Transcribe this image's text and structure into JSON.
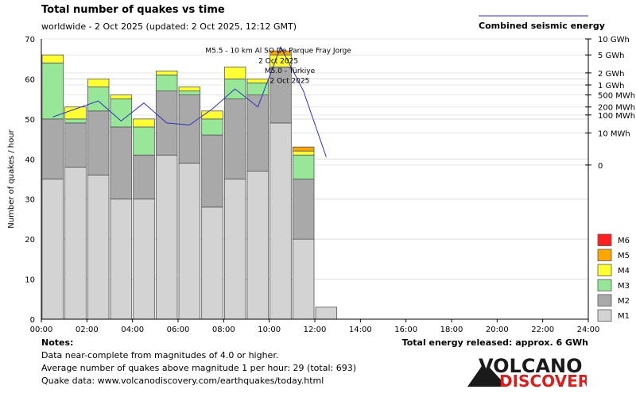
{
  "header": {
    "title": "Total number of quakes vs time",
    "subtitle": "worldwide -  2 Oct 2025 (updated: 2 Oct 2025, 12:12 GMT)",
    "energy_legend_label": "Combined seismic energy"
  },
  "notes": {
    "title": "Notes:",
    "lines": [
      "Data near-complete from magnitudes of 4.0 or higher.",
      "Average number of quakes above magnitude 1 per hour: 29 (total: 693)",
      "Quake data: www.volcanodiscovery.com/earthquakes/today.html"
    ],
    "total_energy": "Total energy released: approx. 6 GWh"
  },
  "logo": {
    "line1": "VOLCANO",
    "line2": "DISCOVERY"
  },
  "colors": {
    "M1": "#d3d3d3",
    "M2": "#a9a9a9",
    "M3": "#98e698",
    "M4": "#ffff33",
    "M5": "#ffa500",
    "M6": "#ff2020",
    "energy_line": "#3030c0",
    "grid": "#dddddd"
  },
  "chart_data": {
    "type": "bar",
    "stacked": true,
    "ylabel": "Number of quakes / hour",
    "ylim": [
      0,
      70
    ],
    "y_ticks": [
      0,
      10,
      20,
      30,
      40,
      50,
      60,
      70
    ],
    "x_ticks": [
      "00:00",
      "02:00",
      "04:00",
      "06:00",
      "08:00",
      "10:00",
      "12:00",
      "14:00",
      "16:00",
      "18:00",
      "20:00",
      "22:00",
      "24:00"
    ],
    "hours": [
      0,
      1,
      2,
      3,
      4,
      5,
      6,
      7,
      8,
      9,
      10,
      11,
      12
    ],
    "series": [
      {
        "name": "M1",
        "values": [
          35,
          38,
          36,
          30,
          30,
          41,
          39,
          28,
          35,
          37,
          49,
          20,
          3
        ]
      },
      {
        "name": "M2",
        "values": [
          15,
          11,
          16,
          18,
          11,
          16,
          17,
          18,
          20,
          19,
          14,
          15,
          0
        ]
      },
      {
        "name": "M3",
        "values": [
          14,
          1,
          6,
          7,
          7,
          4,
          1,
          4,
          5,
          3,
          0,
          6,
          0
        ]
      },
      {
        "name": "M4",
        "values": [
          2,
          3,
          2,
          1,
          2,
          1,
          1,
          2,
          3,
          1,
          3,
          1,
          0
        ]
      },
      {
        "name": "M5",
        "values": [
          0,
          0,
          0,
          0,
          0,
          0,
          0,
          0,
          0,
          0,
          1,
          1,
          0
        ]
      },
      {
        "name": "M6",
        "values": [
          0,
          0,
          0,
          0,
          0,
          0,
          0,
          0,
          0,
          0,
          0,
          0,
          0
        ]
      }
    ],
    "legend": [
      "M6",
      "M5",
      "M4",
      "M3",
      "M2",
      "M1"
    ],
    "energy_axis_labels": [
      "10 GWh",
      "5 GWh",
      "2 GWh",
      "1 GWh",
      "500 MWh",
      "200 MWh",
      "100 MWh",
      "10 MWh",
      "0"
    ],
    "energy_axis_ticks_y": [
      70,
      66,
      61.5,
      58.5,
      56,
      53,
      51,
      46.5,
      38.5
    ],
    "energy_line": {
      "hours": [
        0.5,
        1.5,
        2.5,
        3.5,
        4.5,
        5.5,
        6.5,
        7.5,
        8.5,
        9.5,
        10.5,
        11.5,
        12.5
      ],
      "y": [
        50.5,
        52.5,
        54.5,
        49.5,
        54,
        49,
        48.5,
        52.5,
        57.5,
        53,
        68,
        57,
        40.5
      ]
    },
    "annotations": [
      {
        "text": "M5.5 - 10 km Al SO De Parque Fray Jorge",
        "hour": 10.4,
        "y": 66.5
      },
      {
        "text": "2 Oct 2025",
        "hour": 10.4,
        "y": 64
      },
      {
        "text": "M5.0 - Türkiye",
        "hour": 10.9,
        "y": 61.5
      },
      {
        "text": "2 Oct 2025",
        "hour": 10.9,
        "y": 59
      }
    ]
  }
}
